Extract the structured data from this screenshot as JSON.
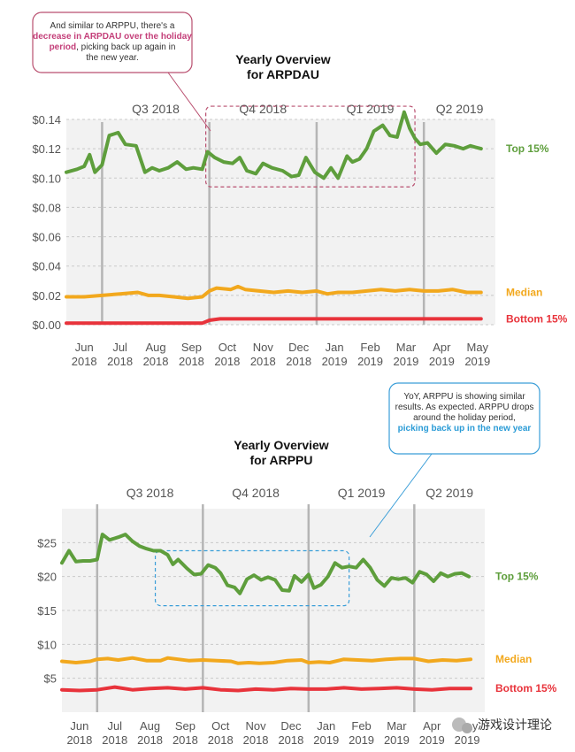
{
  "chart_data": [
    {
      "type": "line",
      "title": "Yearly Overview\nfor ARPDAU",
      "quarters": [
        "Q3 2018",
        "Q4 2018",
        "Q1 2019",
        "Q2 2019"
      ],
      "x_ticks": [
        {
          "m": "Jun",
          "y": "2018"
        },
        {
          "m": "Jul",
          "y": "2018"
        },
        {
          "m": "Aug",
          "y": "2018"
        },
        {
          "m": "Sep",
          "y": "2018"
        },
        {
          "m": "Oct",
          "y": "2018"
        },
        {
          "m": "Nov",
          "y": "2018"
        },
        {
          "m": "Dec",
          "y": "2018"
        },
        {
          "m": "Jan",
          "y": "2019"
        },
        {
          "m": "Feb",
          "y": "2019"
        },
        {
          "m": "Mar",
          "y": "2019"
        },
        {
          "m": "Apr",
          "y": "2019"
        },
        {
          "m": "May",
          "y": "2019"
        }
      ],
      "y_ticks": [
        "$0.00",
        "$0.02",
        "$0.04",
        "$0.06",
        "$0.08",
        "$0.10",
        "$0.12",
        "$0.14"
      ],
      "ylim": [
        0,
        0.14
      ],
      "x_range": [
        0,
        12
      ],
      "quarter_boundaries": [
        1,
        4,
        7,
        10
      ],
      "highlight_range": {
        "x": [
          3.9,
          9.75
        ],
        "y": [
          0.094,
          0.149
        ]
      },
      "annotation": {
        "pre": "And similar to ARPPU, there's a",
        "highlight": "decrease in ARPDAU over the holiday period",
        "post": ", picking back up again in the new year.",
        "highlight_color": "#c4407a",
        "border_color": "#b94f6f"
      },
      "series": [
        {
          "name": "Top 15%",
          "color": "#5e9e3c",
          "x": [
            0,
            0.3,
            0.5,
            0.65,
            0.8,
            1.0,
            1.2,
            1.45,
            1.65,
            1.95,
            2.2,
            2.4,
            2.6,
            2.85,
            3.1,
            3.35,
            3.55,
            3.8,
            3.95,
            4.15,
            4.4,
            4.65,
            4.85,
            5.05,
            5.3,
            5.5,
            5.75,
            6.05,
            6.3,
            6.5,
            6.7,
            6.95,
            7.2,
            7.4,
            7.6,
            7.85,
            8.0,
            8.2,
            8.4,
            8.6,
            8.85,
            9.05,
            9.25,
            9.45,
            9.6,
            9.75,
            9.9,
            10.1,
            10.35,
            10.6,
            10.85,
            11.1,
            11.3,
            11.45,
            11.6
          ],
          "values": [
            0.104,
            0.106,
            0.108,
            0.116,
            0.104,
            0.109,
            0.129,
            0.131,
            0.123,
            0.122,
            0.104,
            0.107,
            0.105,
            0.107,
            0.111,
            0.106,
            0.107,
            0.106,
            0.118,
            0.114,
            0.111,
            0.11,
            0.114,
            0.105,
            0.103,
            0.11,
            0.107,
            0.105,
            0.101,
            0.102,
            0.114,
            0.104,
            0.1,
            0.107,
            0.1,
            0.115,
            0.111,
            0.113,
            0.12,
            0.132,
            0.136,
            0.129,
            0.128,
            0.145,
            0.134,
            0.127,
            0.123,
            0.124,
            0.117,
            0.123,
            0.122,
            0.12,
            0.122,
            0.121,
            0.12
          ]
        },
        {
          "name": "Median",
          "color": "#f2a81d",
          "x": [
            0,
            0.5,
            1.0,
            1.5,
            2.0,
            2.3,
            2.6,
            3.0,
            3.4,
            3.8,
            4.0,
            4.2,
            4.6,
            4.8,
            5.0,
            5.4,
            5.8,
            6.2,
            6.6,
            7.0,
            7.3,
            7.6,
            8.0,
            8.4,
            8.8,
            9.2,
            9.6,
            10.0,
            10.4,
            10.8,
            11.2,
            11.6
          ],
          "values": [
            0.019,
            0.019,
            0.02,
            0.021,
            0.022,
            0.02,
            0.02,
            0.019,
            0.018,
            0.019,
            0.023,
            0.025,
            0.024,
            0.026,
            0.024,
            0.023,
            0.022,
            0.023,
            0.022,
            0.023,
            0.021,
            0.022,
            0.022,
            0.023,
            0.024,
            0.023,
            0.024,
            0.023,
            0.023,
            0.024,
            0.022,
            0.022
          ]
        },
        {
          "name": "Bottom 15%",
          "color": "#e8333b",
          "x": [
            0,
            1.0,
            2.0,
            2.8,
            3.5,
            3.8,
            4.0,
            4.3,
            5.0,
            5.5,
            6.0,
            6.5,
            7.0,
            7.5,
            8.0,
            8.5,
            9.0,
            9.5,
            10.0,
            10.5,
            11.0,
            11.6
          ],
          "values": [
            0.001,
            0.001,
            0.001,
            0.001,
            0.001,
            0.001,
            0.003,
            0.004,
            0.004,
            0.004,
            0.004,
            0.004,
            0.004,
            0.004,
            0.004,
            0.004,
            0.004,
            0.004,
            0.004,
            0.004,
            0.004,
            0.004
          ]
        }
      ]
    },
    {
      "type": "line",
      "title": "Yearly Overview\nfor ARPPU",
      "quarters": [
        "Q3 2018",
        "Q4 2018",
        "Q1 2019",
        "Q2 2019"
      ],
      "x_ticks": [
        {
          "m": "Jun",
          "y": "2018"
        },
        {
          "m": "Jul",
          "y": "2018"
        },
        {
          "m": "Aug",
          "y": "2018"
        },
        {
          "m": "Sep",
          "y": "2018"
        },
        {
          "m": "Oct",
          "y": "2018"
        },
        {
          "m": "Nov",
          "y": "2018"
        },
        {
          "m": "Dec",
          "y": "2018"
        },
        {
          "m": "Jan",
          "y": "2019"
        },
        {
          "m": "Feb",
          "y": "2019"
        },
        {
          "m": "Mar",
          "y": "2019"
        },
        {
          "m": "Apr",
          "y": "2019"
        },
        {
          "m": "May",
          "y": "2019"
        }
      ],
      "y_ticks": [
        "$5",
        "$10",
        "$15",
        "$20",
        "$25"
      ],
      "ylim": [
        0,
        30
      ],
      "x_range": [
        0,
        12
      ],
      "quarter_boundaries": [
        1,
        4,
        7,
        10
      ],
      "highlight_range": {
        "x": [
          2.65,
          8.15
        ],
        "y": [
          15.7,
          23.8
        ]
      },
      "annotation": {
        "pre": "YoY, ARPPU is showing similar results. As expected. ARPPU drops around the holiday period,",
        "highlight": "picking back up in the new year",
        "post": "",
        "highlight_color": "#2a9bd6",
        "border_color": "#3a9ed8"
      },
      "series": [
        {
          "name": "Top 15%",
          "color": "#5e9e3c",
          "x": [
            0,
            0.2,
            0.4,
            0.6,
            0.8,
            1.0,
            1.15,
            1.35,
            1.6,
            1.8,
            2.0,
            2.2,
            2.4,
            2.6,
            2.8,
            3.0,
            3.15,
            3.3,
            3.55,
            3.75,
            3.95,
            4.15,
            4.35,
            4.5,
            4.7,
            4.9,
            5.05,
            5.25,
            5.45,
            5.65,
            5.85,
            6.05,
            6.25,
            6.45,
            6.6,
            6.8,
            7.0,
            7.15,
            7.35,
            7.55,
            7.75,
            7.95,
            8.15,
            8.35,
            8.55,
            8.75,
            8.95,
            9.15,
            9.35,
            9.55,
            9.75,
            9.95,
            10.15,
            10.35,
            10.55,
            10.75,
            10.95,
            11.15,
            11.35,
            11.55
          ],
          "values": [
            22.0,
            23.8,
            22.2,
            22.3,
            22.3,
            22.5,
            26.2,
            25.4,
            25.8,
            26.2,
            25.2,
            24.5,
            24.1,
            23.8,
            23.8,
            23.2,
            21.8,
            22.5,
            21.2,
            20.3,
            20.4,
            21.7,
            21.3,
            20.5,
            18.7,
            18.4,
            17.5,
            19.6,
            20.2,
            19.5,
            19.9,
            19.5,
            18.0,
            17.9,
            20.1,
            19.2,
            20.3,
            18.3,
            18.8,
            20.0,
            22.0,
            21.3,
            21.5,
            21.3,
            22.5,
            21.3,
            19.5,
            18.6,
            19.8,
            19.6,
            19.8,
            19.1,
            20.7,
            20.3,
            19.3,
            20.5,
            20.0,
            20.4,
            20.5,
            20.0
          ]
        },
        {
          "name": "Median",
          "color": "#f2a81d",
          "x": [
            0,
            0.4,
            0.8,
            1.0,
            1.3,
            1.6,
            2.0,
            2.4,
            2.8,
            3.0,
            3.3,
            3.6,
            4.0,
            4.4,
            4.8,
            5.0,
            5.3,
            5.6,
            6.0,
            6.4,
            6.8,
            7.0,
            7.3,
            7.6,
            8.0,
            8.4,
            8.8,
            9.2,
            9.6,
            10.0,
            10.4,
            10.8,
            11.2,
            11.6
          ],
          "values": [
            7.5,
            7.3,
            7.5,
            7.8,
            7.9,
            7.7,
            8.0,
            7.6,
            7.6,
            8.0,
            7.8,
            7.6,
            7.7,
            7.6,
            7.5,
            7.2,
            7.3,
            7.2,
            7.3,
            7.6,
            7.7,
            7.3,
            7.4,
            7.3,
            7.8,
            7.7,
            7.6,
            7.8,
            7.9,
            7.9,
            7.5,
            7.7,
            7.6,
            7.8
          ]
        },
        {
          "name": "Bottom 15%",
          "color": "#e8333b",
          "x": [
            0,
            0.5,
            1.0,
            1.5,
            2.0,
            2.5,
            3.0,
            3.5,
            4.0,
            4.5,
            5.0,
            5.5,
            6.0,
            6.5,
            7.0,
            7.5,
            8.0,
            8.5,
            9.0,
            9.5,
            10.0,
            10.5,
            11.0,
            11.6
          ],
          "values": [
            3.3,
            3.2,
            3.3,
            3.7,
            3.3,
            3.5,
            3.6,
            3.4,
            3.6,
            3.3,
            3.2,
            3.4,
            3.3,
            3.5,
            3.4,
            3.4,
            3.6,
            3.4,
            3.5,
            3.6,
            3.4,
            3.3,
            3.5,
            3.5
          ]
        }
      ]
    }
  ],
  "watermark": {
    "text": "游戏设计理论"
  },
  "colors": {
    "plot_bg": "#f2f2f2",
    "grid": "#c9c9c9",
    "axis_text": "#555555",
    "quarter_line": "#b5b5b5"
  }
}
